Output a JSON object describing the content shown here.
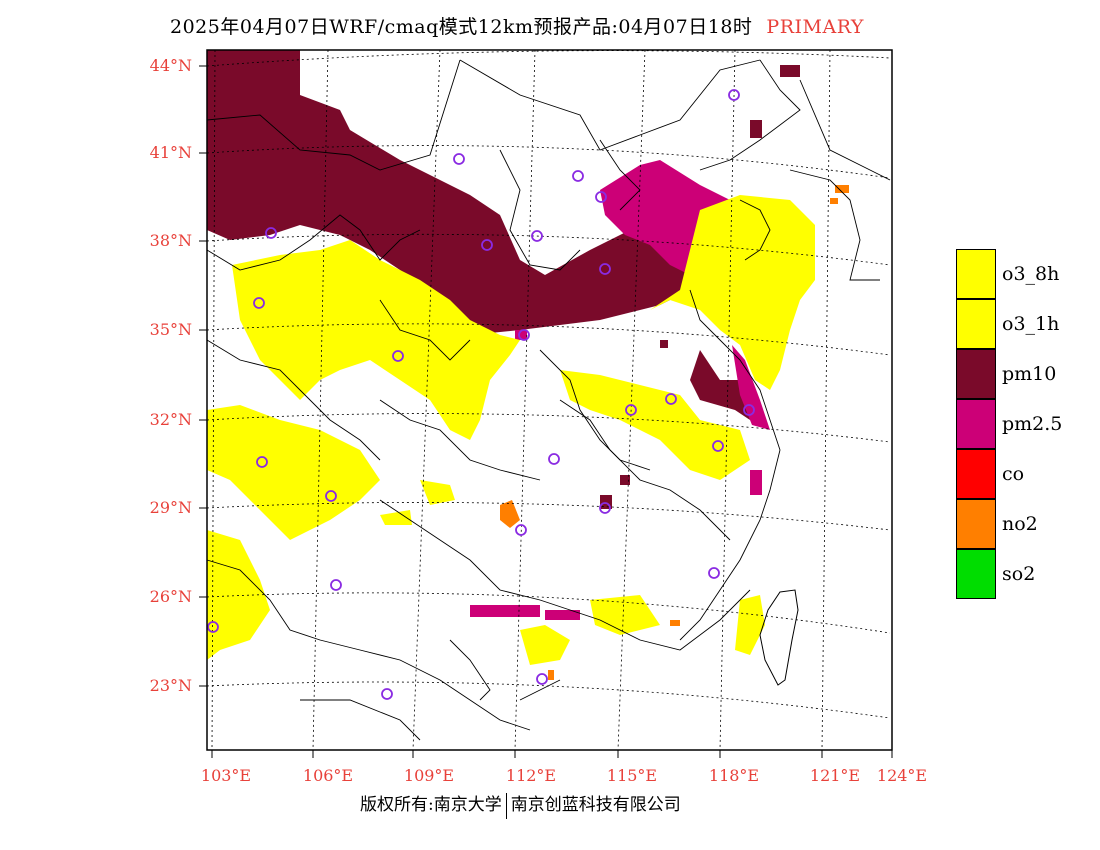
{
  "title": {
    "text": "2025年04月07日WRF/cmaq模式12km预报产品:04月07日18时",
    "tag": "PRIMARY",
    "tag_color": "#e8413a"
  },
  "axes": {
    "lat_labels": [
      "44°N",
      "41°N",
      "38°N",
      "35°N",
      "32°N",
      "29°N",
      "26°N",
      "23°N"
    ],
    "lon_labels": [
      "103°E",
      "106°E",
      "109°E",
      "112°E",
      "115°E",
      "118°E",
      "121°E",
      "124°E"
    ],
    "label_color": "#e8413a"
  },
  "legend": [
    {
      "label": "o3_8h",
      "color": "#ffff00"
    },
    {
      "label": "o3_1h",
      "color": "#ffff00"
    },
    {
      "label": "pm10",
      "color": "#7a0a2a"
    },
    {
      "label": "pm2.5",
      "color": "#cc0077"
    },
    {
      "label": "co",
      "color": "#ff0000"
    },
    {
      "label": "no2",
      "color": "#ff7f00"
    },
    {
      "label": "so2",
      "color": "#00dd00"
    }
  ],
  "footer": {
    "left": "版权所有:南京大学",
    "right": "南京创蓝科技有限公司"
  },
  "station_marker": "purple-circle-icon"
}
